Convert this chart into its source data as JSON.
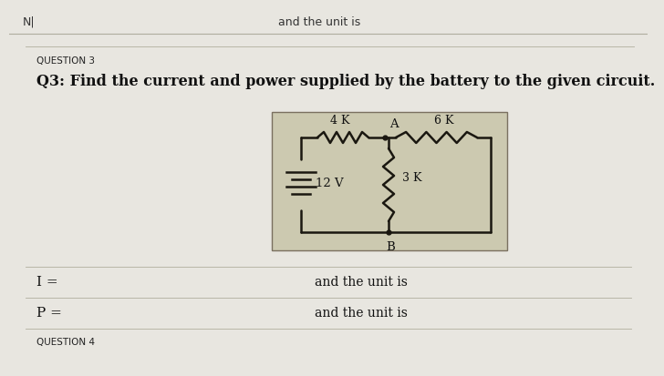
{
  "page_bg": "#e8e6e0",
  "circuit_bg": "#ccc9b0",
  "circuit_border": "#7a7060",
  "wire_color": "#1a1710",
  "font_color": "#111111",
  "sep_color": "#b0ae9e",
  "top_left_text": "N|",
  "top_center_text": "and the unit is",
  "question_label": "QUESTION 3",
  "question_text": "Q3: Find the current and power supplied by the battery to the given circuit.",
  "label_4k": "4 K",
  "label_6k": "6 K",
  "label_3k": "3 K",
  "label_12v": "12 V",
  "label_A": "A",
  "label_B": "B",
  "i_label": "I =",
  "p_label": "P =",
  "unit_text1": "and the unit is",
  "unit_text2": "and the unit is",
  "question4_label": "QUESTION 4",
  "line_width": 1.8
}
